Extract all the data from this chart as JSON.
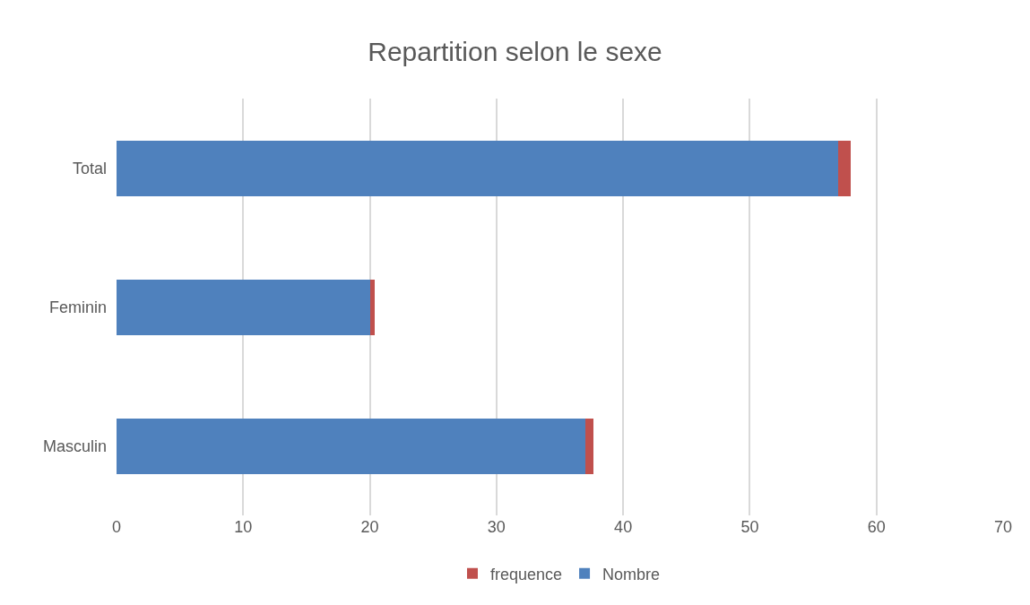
{
  "chart_data": {
    "type": "bar",
    "orientation": "horizontal",
    "stacked": true,
    "title": "Repartition selon le sexe",
    "categories": [
      "Total",
      "Feminin",
      "Masculin"
    ],
    "series": [
      {
        "name": "Nombre",
        "color": "#4f81bd",
        "values": [
          57,
          20,
          37
        ]
      },
      {
        "name": "frequence",
        "color": "#c0504d",
        "values": [
          1,
          0.35,
          0.65
        ]
      }
    ],
    "xlim": [
      0,
      70
    ],
    "xticks": [
      0,
      10,
      20,
      30,
      40,
      50,
      60,
      70
    ],
    "grid": "x",
    "legend": "bottom"
  }
}
